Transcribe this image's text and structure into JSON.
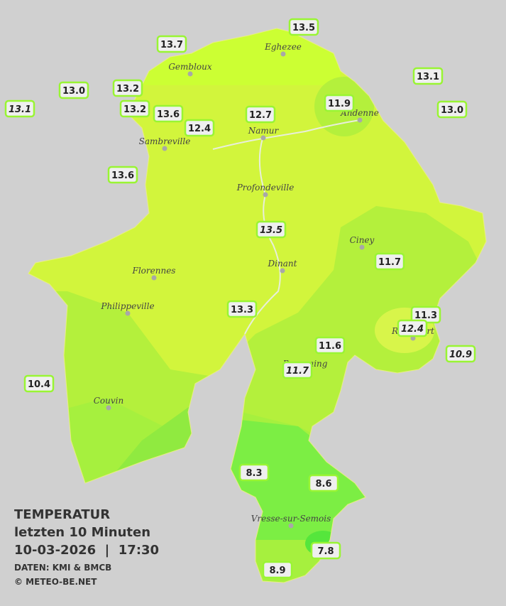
{
  "legend": {
    "lines": [
      "TEMPERATUR",
      "letzten 10 Minuten",
      "10-03-2026  |  17:30"
    ],
    "source": "DATEN: KMI & BMCB",
    "copyright": "© METEO-BE.NET"
  },
  "towns": [
    {
      "name": "Eghezee"
    },
    {
      "name": "Gembloux"
    },
    {
      "name": "Andenne"
    },
    {
      "name": "Namur"
    },
    {
      "name": "Sambreville"
    },
    {
      "name": "Profondeville"
    },
    {
      "name": "Ciney"
    },
    {
      "name": "Dinant"
    },
    {
      "name": "Florennes"
    },
    {
      "name": "Philippeville"
    },
    {
      "name": "Rochefort"
    },
    {
      "name": "Beauraing"
    },
    {
      "name": "Couvin"
    },
    {
      "name": "Vresse-sur-Semois"
    }
  ],
  "stations": [
    {
      "value": "13.5",
      "italic": false
    },
    {
      "value": "13.7",
      "italic": false
    },
    {
      "value": "13.1",
      "italic": false
    },
    {
      "value": "13.0",
      "italic": false
    },
    {
      "value": "13.2",
      "italic": false
    },
    {
      "value": "13.1",
      "italic": true
    },
    {
      "value": "13.2",
      "italic": false
    },
    {
      "value": "13.6",
      "italic": false
    },
    {
      "value": "11.9",
      "italic": false
    },
    {
      "value": "12.7",
      "italic": false
    },
    {
      "value": "13.0",
      "italic": false
    },
    {
      "value": "12.4",
      "italic": false
    },
    {
      "value": "13.6",
      "italic": false
    },
    {
      "value": "13.5",
      "italic": true
    },
    {
      "value": "11.7",
      "italic": false
    },
    {
      "value": "13.3",
      "italic": false
    },
    {
      "value": "11.3",
      "italic": false
    },
    {
      "value": "12.4",
      "italic": true
    },
    {
      "value": "11.6",
      "italic": false
    },
    {
      "value": "10.9",
      "italic": true
    },
    {
      "value": "11.7",
      "italic": true
    },
    {
      "value": "10.4",
      "italic": false
    },
    {
      "value": "8.3",
      "italic": false
    },
    {
      "value": "8.6",
      "italic": false
    },
    {
      "value": "7.8",
      "italic": false
    },
    {
      "value": "8.9",
      "italic": false
    }
  ]
}
